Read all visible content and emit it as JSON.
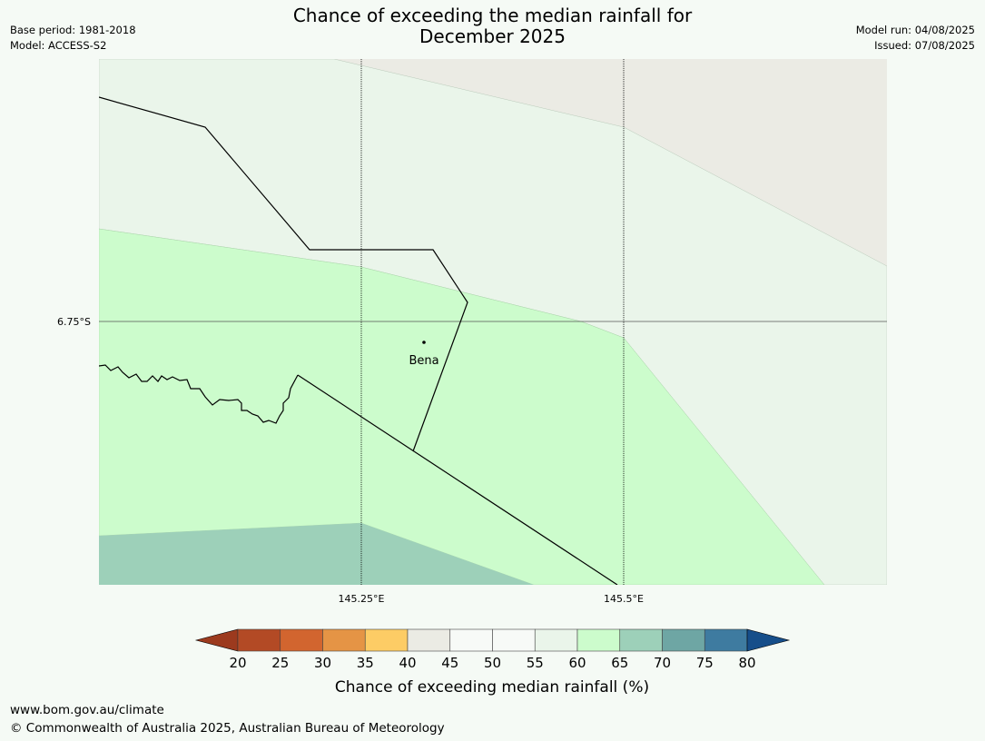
{
  "header": {
    "base_period": "Base period: 1981-2018",
    "model": "Model: ACCESS-S2",
    "model_run": "Model run: 04/08/2025",
    "issued": "Issued: 07/08/2025",
    "title_line1": "Chance of exceeding the median rainfall for",
    "title_line2": "December 2025"
  },
  "map": {
    "lat_label": "6.75°S",
    "lon_labels": [
      "145.25°E",
      "145.5°E"
    ],
    "place": "Bena",
    "colors": {
      "c40_45": "#ebebe4",
      "c55_60": "#eaf5ea",
      "c60_65": "#ccfccc",
      "c65_70": "#9dd0b9"
    }
  },
  "legend": {
    "title": "Chance of exceeding median rainfall (%)",
    "ticks": [
      "20",
      "25",
      "30",
      "35",
      "40",
      "45",
      "50",
      "55",
      "60",
      "65",
      "70",
      "75",
      "80"
    ],
    "colors": [
      "#9c3a1e",
      "#b34a25",
      "#d2652f",
      "#e59445",
      "#fdcc65",
      "#ebebe4",
      "#f7faf7",
      "#f7faf7",
      "#eaf5ea",
      "#ccfccc",
      "#9dd0b9",
      "#6ea6a4",
      "#3e7ba0",
      "#164e8a"
    ]
  },
  "footer": {
    "url": "www.bom.gov.au/climate",
    "copyright": "© Commonwealth of Australia 2025, Australian Bureau of Meteorology"
  }
}
